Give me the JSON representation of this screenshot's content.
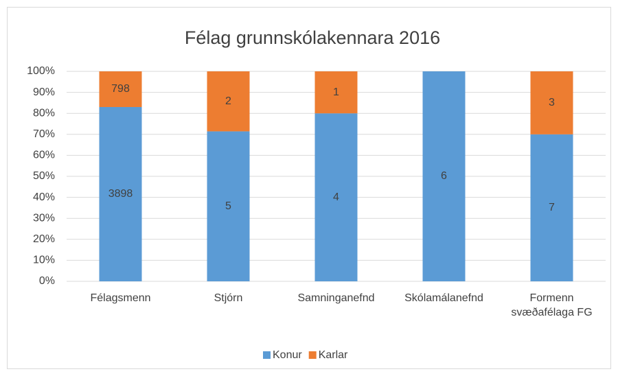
{
  "chart_data": {
    "type": "bar",
    "stacked": "percent",
    "title": "Félag grunnskólakennara 2016",
    "categories": [
      "Félagsmenn",
      "Stjórn",
      "Samninganefnd",
      "Skólamálanefnd",
      "Formenn svæðafélaga FG"
    ],
    "series": [
      {
        "name": "Konur",
        "color": "#5b9bd5",
        "values": [
          3898,
          5,
          4,
          6,
          7
        ]
      },
      {
        "name": "Karlar",
        "color": "#ed7d31",
        "values": [
          798,
          2,
          1,
          0,
          3
        ]
      }
    ],
    "ylim": [
      0,
      100
    ],
    "yticks": [
      {
        "value": 0,
        "label": "0%"
      },
      {
        "value": 10,
        "label": "10%"
      },
      {
        "value": 20,
        "label": "20%"
      },
      {
        "value": 30,
        "label": "30%"
      },
      {
        "value": 40,
        "label": "40%"
      },
      {
        "value": 50,
        "label": "50%"
      },
      {
        "value": 60,
        "label": "60%"
      },
      {
        "value": 70,
        "label": "70%"
      },
      {
        "value": 80,
        "label": "80%"
      },
      {
        "value": 90,
        "label": "90%"
      },
      {
        "value": 100,
        "label": "100%"
      }
    ],
    "grid": true,
    "legend": "bottom"
  }
}
